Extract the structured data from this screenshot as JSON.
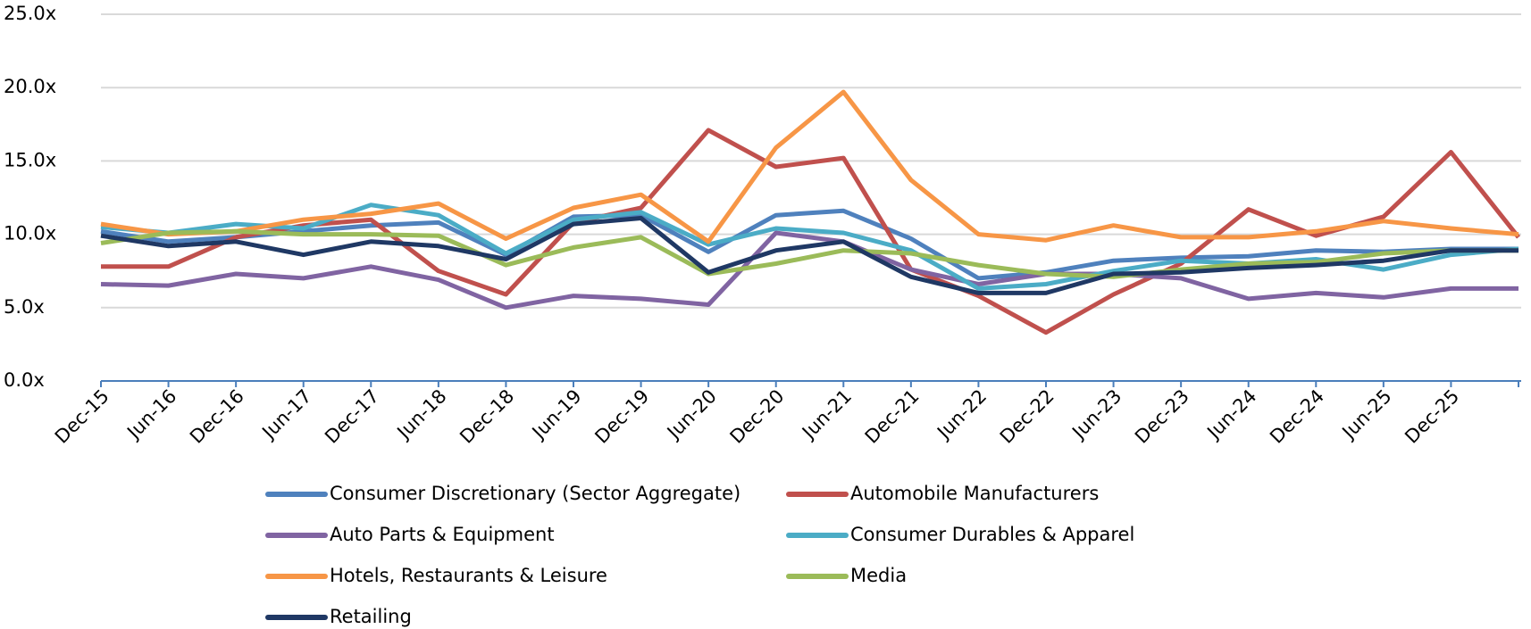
{
  "chart_data": {
    "type": "line",
    "categories": [
      "Dec-15",
      "Jun-16",
      "Dec-16",
      "Jun-17",
      "Dec-17",
      "Jun-18",
      "Dec-18",
      "Jun-19",
      "Dec-19",
      "Jun-20",
      "Dec-20",
      "Jun-21",
      "Dec-21",
      "Jun-22",
      "Dec-22",
      "Jun-23",
      "Dec-23",
      "Jun-24",
      "Dec-24",
      "Jun-25",
      "Dec-25",
      null
    ],
    "series": [
      {
        "name": "Consumer Discretionary (Sector Aggregate)",
        "color": "#4f81bd",
        "values": [
          10.2,
          9.5,
          9.8,
          10.2,
          10.6,
          10.8,
          8.6,
          11.2,
          11.3,
          8.8,
          11.3,
          11.6,
          9.7,
          7.0,
          7.4,
          8.2,
          8.4,
          8.5,
          8.9,
          8.8,
          9.0,
          9.0
        ]
      },
      {
        "name": "Automobile Manufacturers",
        "color": "#c0504d",
        "values": [
          7.8,
          7.8,
          9.8,
          10.6,
          11.0,
          7.5,
          5.9,
          10.8,
          11.8,
          17.1,
          14.6,
          15.2,
          7.6,
          5.8,
          3.3,
          5.9,
          8.0,
          11.7,
          9.9,
          11.2,
          15.6,
          9.8
        ]
      },
      {
        "name": "Auto Parts & Equipment",
        "color": "#8064a2",
        "values": [
          6.6,
          6.5,
          7.3,
          7.0,
          7.8,
          6.9,
          5.0,
          5.8,
          5.6,
          5.2,
          10.1,
          9.5,
          7.6,
          6.6,
          7.3,
          7.3,
          7.0,
          5.6,
          6.0,
          5.7,
          6.3,
          6.3
        ]
      },
      {
        "name": "Consumer Durables & Apparel",
        "color": "#4bacc6",
        "values": [
          10.5,
          10.1,
          10.7,
          10.4,
          12.0,
          11.3,
          8.7,
          11.0,
          11.5,
          9.3,
          10.4,
          10.1,
          8.9,
          6.3,
          6.6,
          7.5,
          8.2,
          8.0,
          8.3,
          7.6,
          8.6,
          9.0
        ]
      },
      {
        "name": "Hotels, Restaurants & Leisure",
        "color": "#f79646",
        "values": [
          10.7,
          10.0,
          10.2,
          11.0,
          11.4,
          12.1,
          9.7,
          11.8,
          12.7,
          9.5,
          15.9,
          19.7,
          13.7,
          10.0,
          9.6,
          10.6,
          9.8,
          9.8,
          10.2,
          10.9,
          10.4,
          10.0
        ]
      },
      {
        "name": "Media",
        "color": "#9bbb59",
        "values": [
          9.4,
          10.1,
          10.2,
          10.0,
          10.0,
          9.9,
          7.9,
          9.1,
          9.8,
          7.3,
          8.0,
          8.9,
          8.7,
          7.9,
          7.3,
          7.1,
          7.6,
          8.0,
          8.1,
          8.7,
          8.9,
          8.9
        ]
      },
      {
        "name": "Retailing",
        "color": "#1f3864",
        "values": [
          9.9,
          9.2,
          9.5,
          8.6,
          9.5,
          9.2,
          8.3,
          10.7,
          11.1,
          7.4,
          8.9,
          9.5,
          7.1,
          6.0,
          6.0,
          7.3,
          7.4,
          7.7,
          7.9,
          8.2,
          8.9,
          8.9
        ]
      }
    ],
    "ylim": [
      0,
      25
    ],
    "yticks": [
      {
        "value": 0,
        "label": "0.0x"
      },
      {
        "value": 5,
        "label": "5.0x"
      },
      {
        "value": 10,
        "label": "10.0x"
      },
      {
        "value": 15,
        "label": "15.0x"
      },
      {
        "value": 20,
        "label": "20.0x"
      },
      {
        "value": 25,
        "label": "25.0x"
      }
    ],
    "grid": true
  }
}
